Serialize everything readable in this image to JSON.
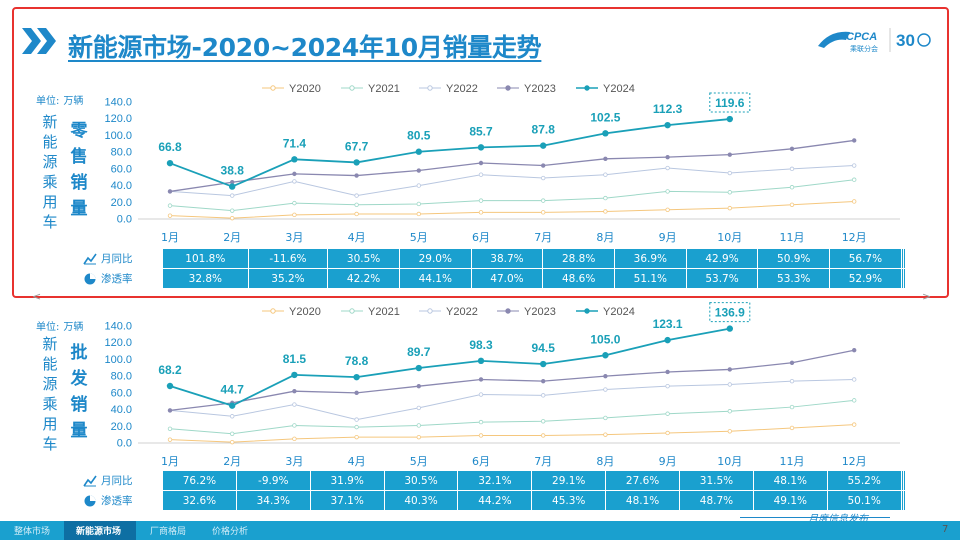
{
  "header": {
    "title": "新能源市场-2020~2024年10月销量走势",
    "logo_text": "CPCA",
    "logo_sub": "乘联分会",
    "anniversary": "30"
  },
  "units": {
    "label": "单位:",
    "value": "万辆"
  },
  "legend": [
    "Y2020",
    "Y2021",
    "Y2022",
    "Y2023",
    "Y2024"
  ],
  "row_labels": {
    "yoy": "月同比",
    "share": "渗透率"
  },
  "side_labels": {
    "prefix": [
      "新",
      "能",
      "源",
      "乘",
      "用",
      "车"
    ],
    "retail": [
      "零",
      "售",
      "销",
      "量"
    ],
    "wholesale": [
      "批",
      "发",
      "销",
      "量"
    ]
  },
  "colors": {
    "accent": "#1e88c9",
    "table_bg": "#1aa0cf",
    "frame": "#e8322f",
    "Y2020": "#f5c77e",
    "Y2021": "#9fd8c8",
    "Y2022": "#b9c7e0",
    "Y2023": "#8a88b0",
    "Y2024": "#1aa0b8"
  },
  "chart_data": [
    {
      "type": "line",
      "title": "零售销量",
      "ylabel": "万辆",
      "ylim": [
        0,
        140
      ],
      "yticks": [
        "0.0",
        "20.0",
        "40.0",
        "60.0",
        "80.0",
        "100.0",
        "120.0",
        "140.0"
      ],
      "categories": [
        "1月",
        "2月",
        "3月",
        "4月",
        "5月",
        "6月",
        "7月",
        "8月",
        "9月",
        "10月",
        "11月",
        "12月"
      ],
      "series": [
        {
          "name": "Y2020",
          "values": [
            4,
            1,
            5,
            6,
            6,
            8,
            8,
            9,
            11,
            13,
            17,
            21
          ]
        },
        {
          "name": "Y2021",
          "values": [
            16,
            10,
            19,
            17,
            18,
            22,
            22,
            25,
            33,
            32,
            38,
            47
          ]
        },
        {
          "name": "Y2022",
          "values": [
            33,
            28,
            45,
            28,
            40,
            53,
            49,
            53,
            61,
            55,
            60,
            64
          ]
        },
        {
          "name": "Y2023",
          "values": [
            33,
            44,
            54,
            52,
            58,
            67,
            64,
            72,
            74,
            77,
            84,
            94
          ]
        },
        {
          "name": "Y2024",
          "values": [
            66.8,
            38.8,
            71.4,
            67.7,
            80.5,
            85.7,
            87.8,
            102.5,
            112.3,
            119.6,
            null,
            null
          ]
        }
      ],
      "labels_2024": [
        "66.8",
        "38.8",
        "71.4",
        "67.7",
        "80.5",
        "85.7",
        "87.8",
        "102.5",
        "112.3",
        "119.6"
      ],
      "yoy": [
        "101.8%",
        "-11.6%",
        "30.5%",
        "29.0%",
        "38.7%",
        "28.8%",
        "36.9%",
        "42.9%",
        "50.9%",
        "56.7%",
        "",
        ""
      ],
      "share": [
        "32.8%",
        "35.2%",
        "42.2%",
        "44.1%",
        "47.0%",
        "48.6%",
        "51.1%",
        "53.7%",
        "53.3%",
        "52.9%",
        "",
        ""
      ]
    },
    {
      "type": "line",
      "title": "批发销量",
      "ylabel": "万辆",
      "ylim": [
        0,
        140
      ],
      "yticks": [
        "0.0",
        "20.0",
        "40.0",
        "60.0",
        "80.0",
        "100.0",
        "120.0",
        "140.0"
      ],
      "categories": [
        "1月",
        "2月",
        "3月",
        "4月",
        "5月",
        "6月",
        "7月",
        "8月",
        "9月",
        "10月",
        "11月",
        "12月"
      ],
      "series": [
        {
          "name": "Y2020",
          "values": [
            4,
            1,
            5,
            7,
            7,
            9,
            9,
            10,
            12,
            14,
            18,
            22
          ]
        },
        {
          "name": "Y2021",
          "values": [
            17,
            11,
            21,
            19,
            21,
            25,
            26,
            30,
            35,
            38,
            43,
            51
          ]
        },
        {
          "name": "Y2022",
          "values": [
            39,
            32,
            46,
            28,
            42,
            58,
            57,
            64,
            68,
            70,
            74,
            76
          ]
        },
        {
          "name": "Y2023",
          "values": [
            39,
            48,
            62,
            60,
            68,
            76,
            74,
            80,
            85,
            88,
            96,
            111
          ]
        },
        {
          "name": "Y2024",
          "values": [
            68.2,
            44.7,
            81.5,
            78.8,
            89.7,
            98.3,
            94.5,
            105.0,
            123.1,
            136.9,
            null,
            null
          ]
        }
      ],
      "labels_2024": [
        "68.2",
        "44.7",
        "81.5",
        "78.8",
        "89.7",
        "98.3",
        "94.5",
        "105.0",
        "123.1",
        "136.9"
      ],
      "yoy": [
        "76.2%",
        "-9.9%",
        "31.9%",
        "30.5%",
        "32.1%",
        "29.1%",
        "27.6%",
        "31.5%",
        "48.1%",
        "55.2%",
        "",
        ""
      ],
      "share": [
        "32.6%",
        "34.3%",
        "37.1%",
        "40.3%",
        "44.2%",
        "45.3%",
        "48.1%",
        "48.7%",
        "49.1%",
        "50.1%",
        "",
        ""
      ]
    }
  ],
  "footer": {
    "tabs": [
      "整体市场",
      "新能源市场",
      "厂商格局",
      "价格分析"
    ],
    "active_tab": 1,
    "publisher": "月度信息发布",
    "page": "7"
  }
}
